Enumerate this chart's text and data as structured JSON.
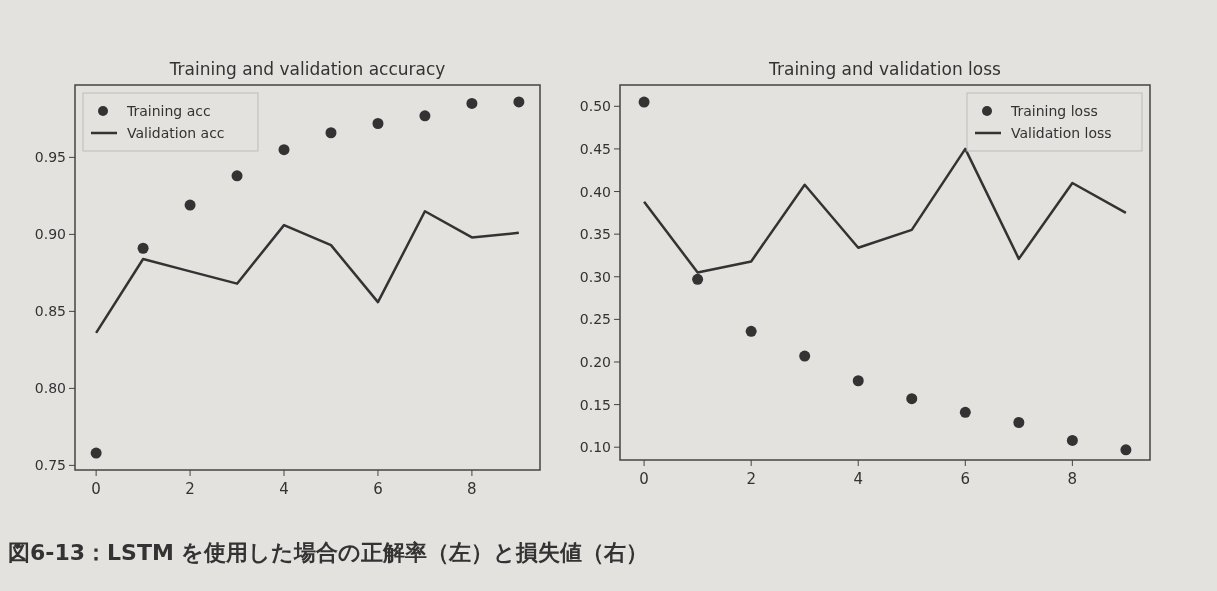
{
  "chart_data": [
    {
      "type": "line",
      "title": "Training and validation accuracy",
      "x": [
        0,
        1,
        2,
        3,
        4,
        5,
        6,
        7,
        8,
        9
      ],
      "series": [
        {
          "name": "Training acc",
          "type": "scatter",
          "marker": "circle",
          "color": "#333333",
          "values": [
            0.758,
            0.891,
            0.919,
            0.938,
            0.955,
            0.966,
            0.972,
            0.977,
            0.985,
            0.986
          ]
        },
        {
          "name": "Validation acc",
          "marker": "none",
          "color": "#333333",
          "values": [
            0.836,
            0.884,
            0.876,
            0.868,
            0.906,
            0.893,
            0.856,
            0.915,
            0.898,
            0.901
          ]
        }
      ],
      "xlim": [
        -0.45,
        9.45
      ],
      "ylim": [
        0.747,
        0.997
      ],
      "xticks": [
        0,
        2,
        4,
        6,
        8
      ],
      "yticks": [
        {
          "value": 0.75,
          "label": "0.75"
        },
        {
          "value": 0.8,
          "label": "0.80"
        },
        {
          "value": 0.85,
          "label": "0.85"
        },
        {
          "value": 0.9,
          "label": "0.90"
        },
        {
          "value": 0.95,
          "label": "0.95"
        }
      ],
      "legend": "top left",
      "line_style": "solid",
      "grid": false,
      "annotations": [
        "図6-13：LSTM を使用した場合の正解率（左）と損失値（右）"
      ]
    },
    {
      "type": "line",
      "title": "Training and validation loss",
      "x": [
        0,
        1,
        2,
        3,
        4,
        5,
        6,
        7,
        8,
        9
      ],
      "series": [
        {
          "name": "Training loss",
          "type": "scatter",
          "marker": "circle",
          "color": "#333333",
          "values": [
            0.505,
            0.297,
            0.236,
            0.207,
            0.178,
            0.157,
            0.141,
            0.129,
            0.108,
            0.097
          ]
        },
        {
          "name": "Validation loss",
          "marker": "none",
          "color": "#333333",
          "values": [
            0.388,
            0.305,
            0.318,
            0.408,
            0.334,
            0.355,
            0.45,
            0.321,
            0.41,
            0.375
          ]
        }
      ],
      "xlim": [
        -0.45,
        9.45
      ],
      "ylim": [
        0.085,
        0.525
      ],
      "xticks": [
        0,
        2,
        4,
        6,
        8
      ],
      "yticks": [
        {
          "value": 0.1,
          "label": "0.10"
        },
        {
          "value": 0.15,
          "label": "0.15"
        },
        {
          "value": 0.2,
          "label": "0.20"
        },
        {
          "value": 0.25,
          "label": "0.25"
        },
        {
          "value": 0.3,
          "label": "0.30"
        },
        {
          "value": 0.35,
          "label": "0.35"
        },
        {
          "value": 0.4,
          "label": "0.40"
        },
        {
          "value": 0.45,
          "label": "0.45"
        },
        {
          "value": 0.5,
          "label": "0.50"
        }
      ],
      "legend": "top right",
      "line_style": "solid",
      "grid": false
    }
  ]
}
